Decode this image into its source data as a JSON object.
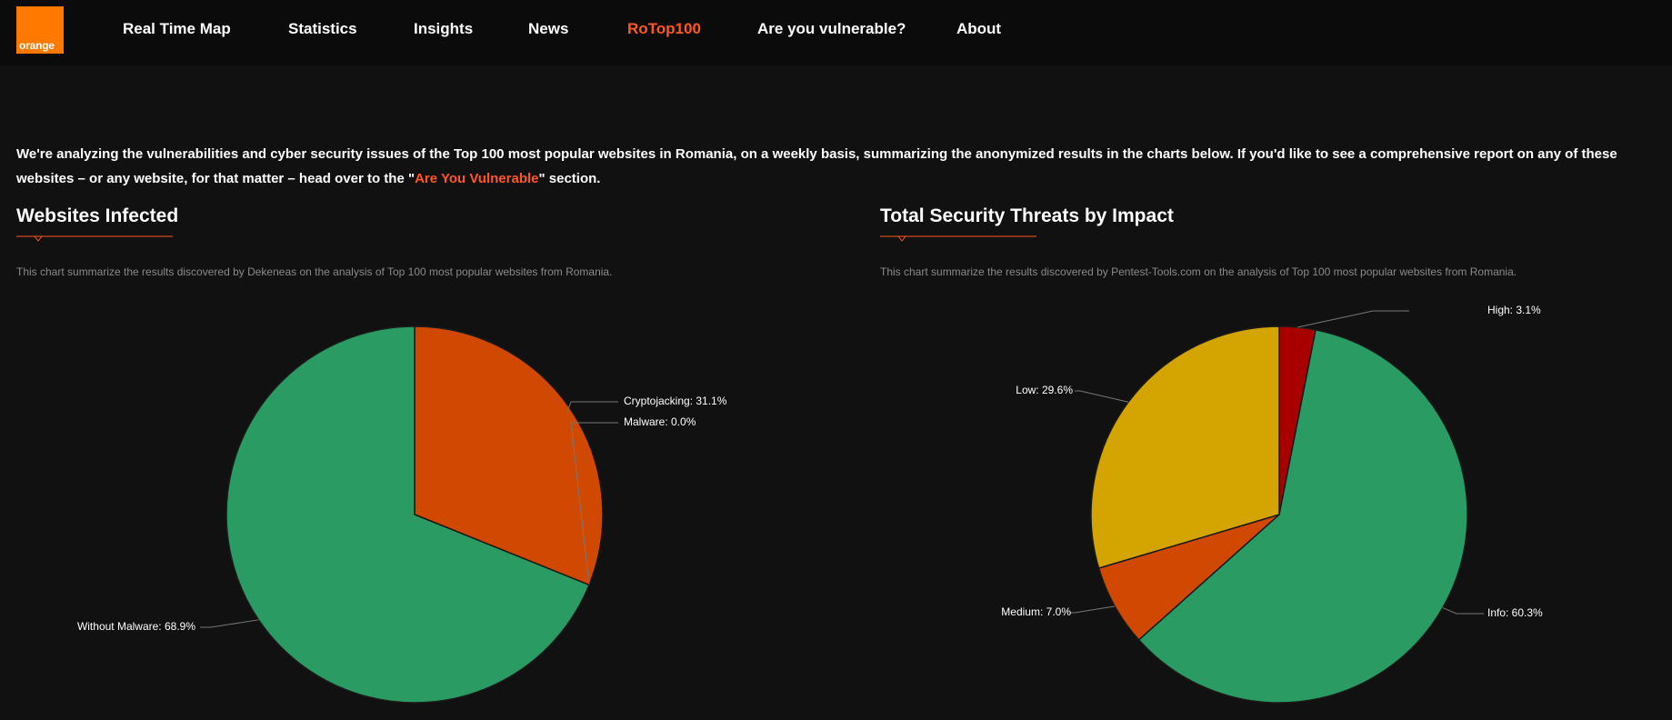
{
  "logo": {
    "text": "orange"
  },
  "nav": {
    "items": [
      {
        "label": "Real Time Map"
      },
      {
        "label": "Statistics"
      },
      {
        "label": "Insights"
      },
      {
        "label": "News"
      },
      {
        "label": "RoTop100"
      },
      {
        "label": "Are you vulnerable?"
      },
      {
        "label": "About"
      }
    ],
    "active_color": "#ff5722"
  },
  "intro": {
    "text_before": "We're analyzing the vulnerabilities and cyber security issues of the Top 100 most popular websites in Romania, on a weekly basis, summarizing the anonymized results in the charts below. If you'd like to see a comprehensive report on any of these websites – or any website, for that matter – head over to the \"",
    "link": "Are You Vulnerable",
    "text_after": "\" section."
  },
  "sections": [
    {
      "title": "Websites Infected",
      "description": "This chart summarize the results discovered by Dekeneas on the analysis of Top 100 most popular websites from Romania."
    },
    {
      "title": "Total Security Threats by Impact",
      "description": "This chart summarize the results discovered by Pentest-Tools.com on the analysis of Top 100 most popular websites from Romania."
    }
  ],
  "chart_data": [
    {
      "type": "pie",
      "title": "Websites Infected",
      "slices": [
        {
          "label": "Cryptojacking: 31.1%",
          "name": "Cryptojacking",
          "value": 31.1,
          "color": "#d14900"
        },
        {
          "label": "Malware: 0.0%",
          "name": "Malware",
          "value": 0.0,
          "color": "#c0392b"
        },
        {
          "label": "Without Malware: 68.9%",
          "name": "Without Malware",
          "value": 68.9,
          "color": "#2a9b62"
        }
      ]
    },
    {
      "type": "pie",
      "title": "Total Security Threats by Impact",
      "slices": [
        {
          "label": "High: 3.1%",
          "name": "High",
          "value": 3.1,
          "color": "#a80000"
        },
        {
          "label": "Info: 60.3%",
          "name": "Info",
          "value": 60.3,
          "color": "#2a9b62"
        },
        {
          "label": "Medium: 7.0%",
          "name": "Medium",
          "value": 7.0,
          "color": "#d14900"
        },
        {
          "label": "Low: 29.6%",
          "name": "Low",
          "value": 29.6,
          "color": "#d4a500"
        }
      ]
    }
  ]
}
